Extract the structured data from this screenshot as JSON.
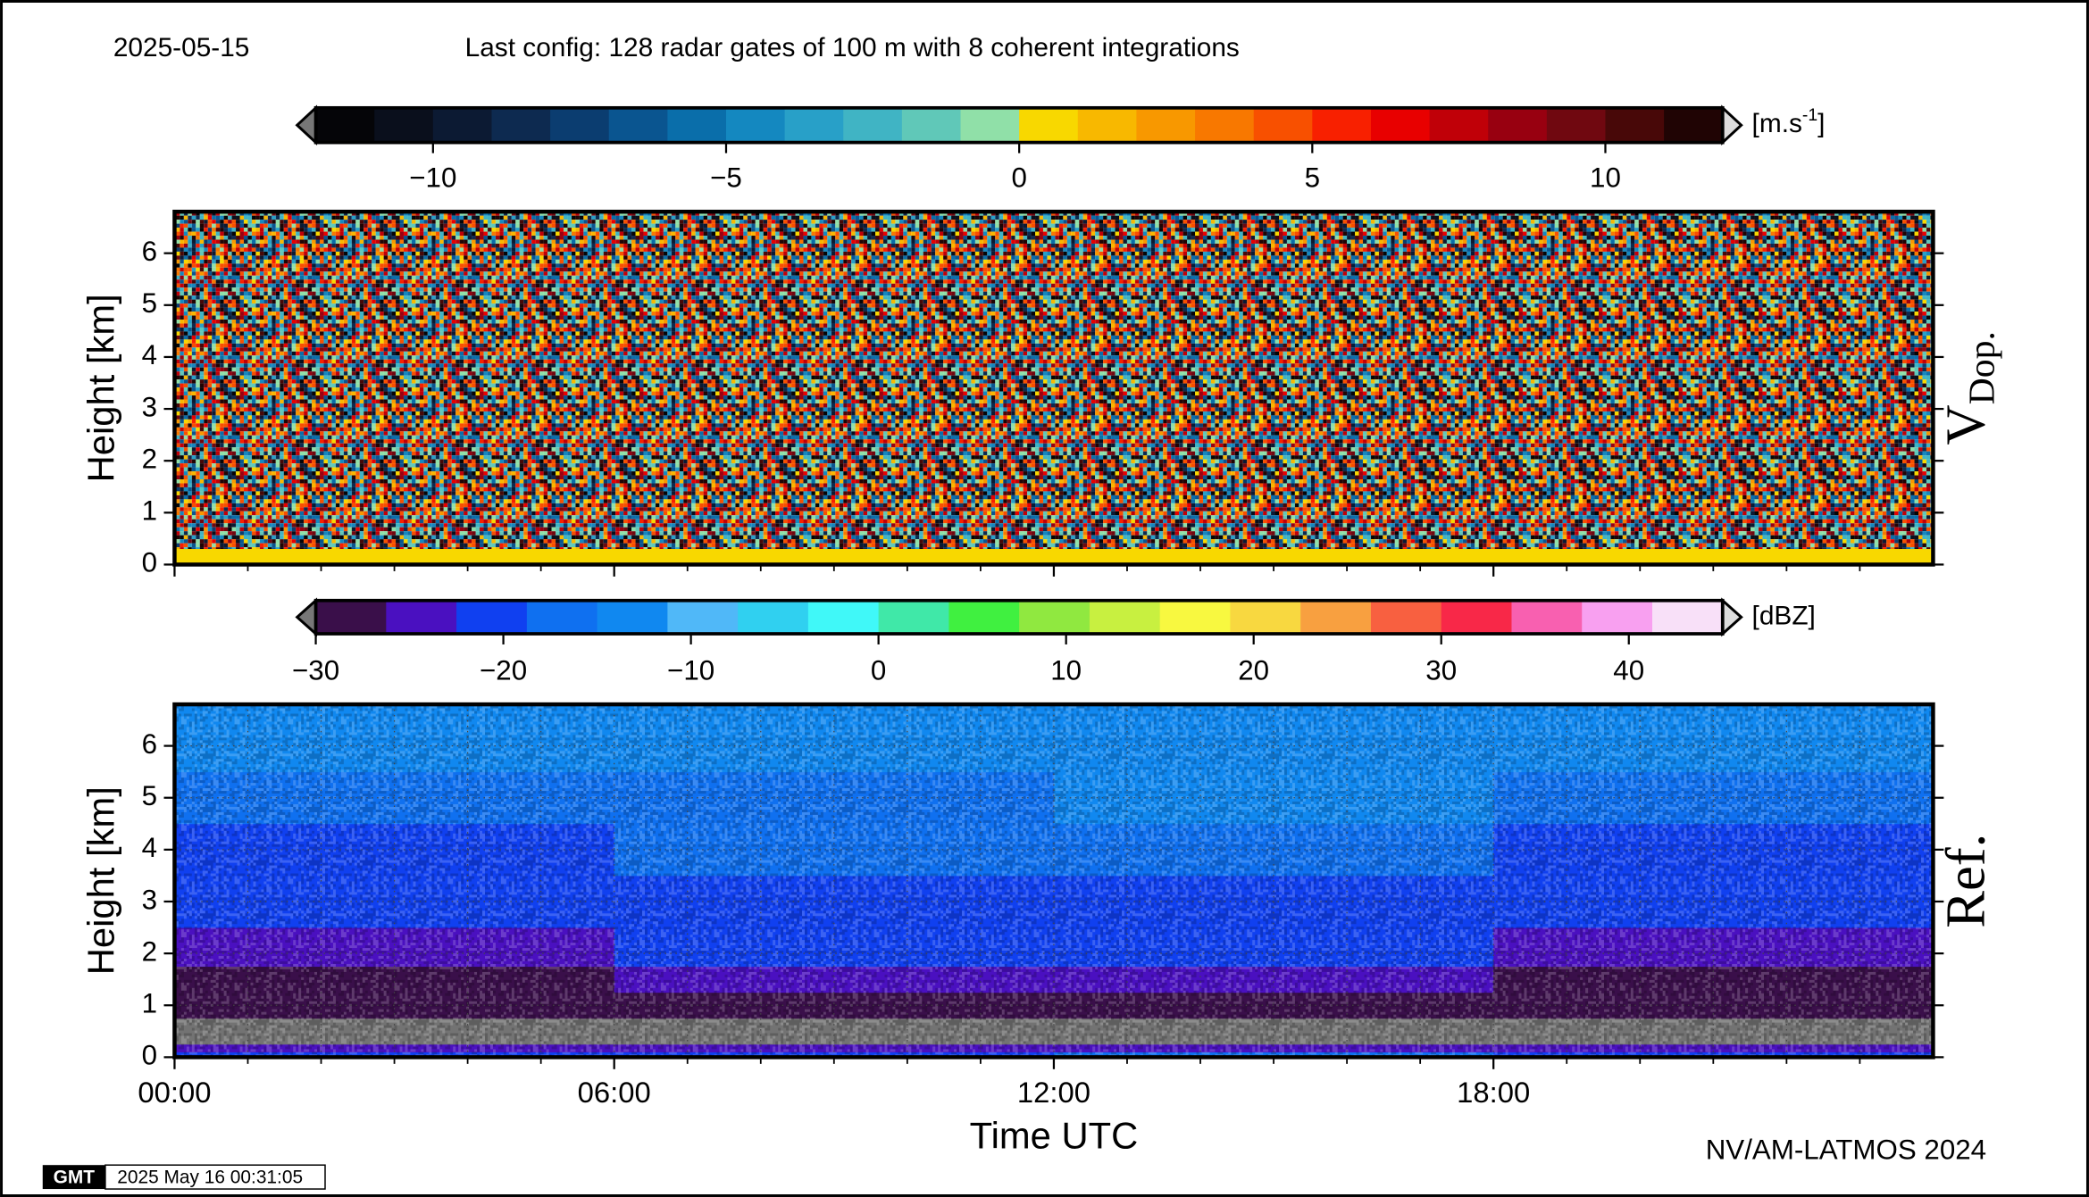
{
  "header": {
    "date": "2025-05-15",
    "config": "Last config: 128 radar gates of 100 m with 8 coherent integrations"
  },
  "footer": {
    "credit": "NV/AM-LATMOS 2024",
    "logo": "GMT",
    "timestamp": "2025 May 16 00:31:05"
  },
  "chart_data": [
    {
      "type": "heatmap",
      "side_label": "V",
      "side_label_sub": "Dop.",
      "ylabel": "Height [km]",
      "xlim": [
        0,
        24
      ],
      "ylim": [
        0,
        6.8
      ],
      "yticks": [
        0,
        1,
        2,
        3,
        4,
        5,
        6
      ],
      "grid": false,
      "x_bins": [
        0,
        6,
        12,
        18,
        24
      ],
      "y_bins": [
        0,
        0.3,
        6.8
      ],
      "z": [
        [
          0.4,
          0.3,
          0.2,
          0.4
        ],
        [
          null,
          null,
          null,
          null
        ]
      ],
      "colorbar": {
        "range": [
          -12,
          12
        ],
        "ticks": [
          {
            "value": -10,
            "label": "−10"
          },
          {
            "value": -5,
            "label": "−5"
          },
          0,
          5,
          10
        ],
        "unit": "[m.s",
        "unit_sup": "-1",
        "unit_end": "]",
        "colors": [
          "#050508",
          "#0a0f1c",
          "#0c1a33",
          "#0d2a50",
          "#0b3d70",
          "#0a5590",
          "#0a6eaa",
          "#1488c0",
          "#28a0c8",
          "#40b4c4",
          "#60c8b8",
          "#90e0a8",
          "#f8d800",
          "#f8b800",
          "#f89800",
          "#f87800",
          "#f85000",
          "#f82000",
          "#e80000",
          "#c00008",
          "#980010",
          "#700810",
          "#480808",
          "#200404"
        ]
      }
    },
    {
      "type": "heatmap",
      "side_label": "Ref.",
      "ylabel": "Height [km]",
      "xlabel": "Time UTC",
      "xlim": [
        0,
        24
      ],
      "ylim": [
        0,
        6.8
      ],
      "yticks": [
        0,
        1,
        2,
        3,
        4,
        5,
        6
      ],
      "grid": true,
      "xticks": [
        {
          "value": 0,
          "label": "00:00"
        },
        {
          "value": 6,
          "label": "06:00"
        },
        {
          "value": 12,
          "label": "12:00"
        },
        {
          "value": 18,
          "label": "18:00"
        }
      ],
      "xminorticks": [
        1,
        2,
        3,
        4,
        5,
        7,
        8,
        9,
        10,
        11,
        13,
        14,
        15,
        16,
        17,
        19,
        20,
        21,
        22,
        23
      ],
      "x_bins": [
        0,
        6,
        12,
        18,
        24
      ],
      "y_bins": [
        0,
        0.1,
        0.25,
        0.75,
        1.25,
        1.75,
        2.5,
        3.5,
        4.5,
        5.5,
        6.8
      ],
      "null_color": "#737373",
      "z": [
        [
          -20,
          -20,
          -18,
          -20
        ],
        [
          -26,
          -26,
          -24,
          -26
        ],
        [
          null,
          null,
          null,
          null
        ],
        [
          -29,
          -28,
          -28,
          -29
        ],
        [
          -27,
          -25,
          -25,
          -27
        ],
        [
          -24,
          -22,
          -22,
          -24
        ],
        [
          -21,
          -20,
          -20,
          -21
        ],
        [
          -19,
          -18,
          -18,
          -19
        ],
        [
          -16,
          -16,
          -15,
          -16
        ],
        [
          -13,
          -13,
          -13,
          -13
        ]
      ],
      "colorbar": {
        "range": [
          -30,
          45
        ],
        "ticks": [
          {
            "value": -30,
            "label": "−30"
          },
          {
            "value": -20,
            "label": "−20"
          },
          {
            "value": -10,
            "label": "−10"
          },
          0,
          10,
          20,
          30,
          40
        ],
        "unit": "[dBZ]",
        "colors": [
          "#3a0f4a",
          "#4a10c0",
          "#1040f0",
          "#0f70f0",
          "#1088f0",
          "#50b8f8",
          "#30d0f0",
          "#40f8f8",
          "#40e8a8",
          "#40f040",
          "#90e840",
          "#c8f040",
          "#f8f840",
          "#f8d840",
          "#f8a040",
          "#f86040",
          "#f82848",
          "#f860b0",
          "#f8a0f0",
          "#f8e0f8"
        ]
      }
    }
  ]
}
